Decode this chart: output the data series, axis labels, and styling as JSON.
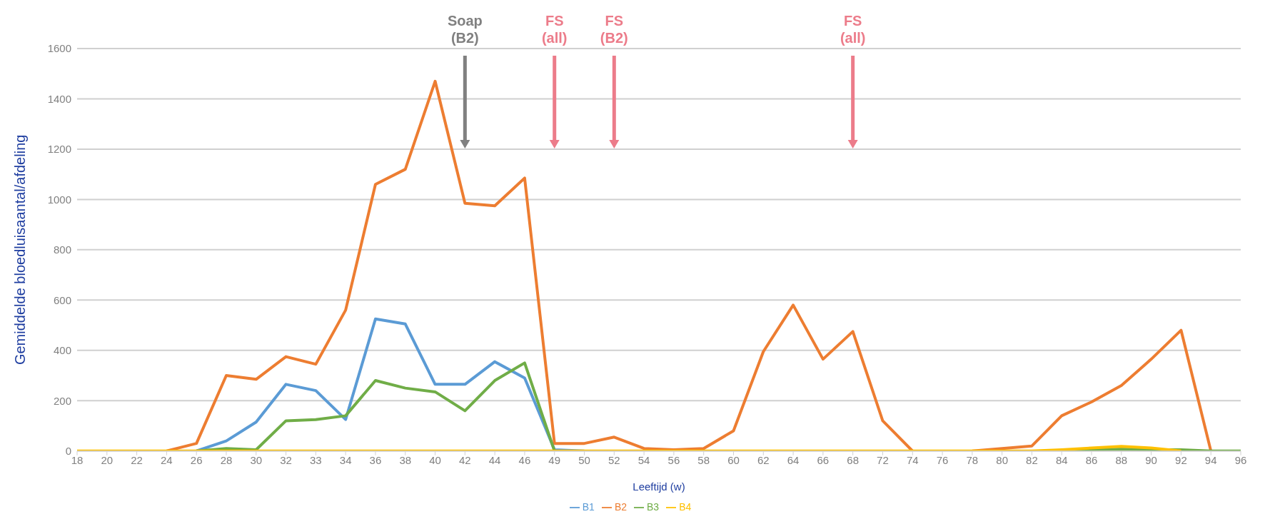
{
  "chart_data": {
    "type": "line",
    "xlabel": "Leeftijd (w)",
    "ylabel": "Gemiddelde bloedluisaantal/afdeling",
    "categories": [
      "18",
      "20",
      "22",
      "24",
      "26",
      "28",
      "30",
      "32",
      "33",
      "34",
      "36",
      "38",
      "40",
      "42",
      "44",
      "46",
      "49",
      "50",
      "52",
      "54",
      "56",
      "58",
      "60",
      "62",
      "64",
      "66",
      "68",
      "72",
      "74",
      "76",
      "78",
      "80",
      "82",
      "84",
      "86",
      "88",
      "90",
      "92",
      "94",
      "96"
    ],
    "series": [
      {
        "name": "B1",
        "color": "#5b9bd5",
        "values": [
          null,
          null,
          null,
          null,
          0,
          40,
          115,
          265,
          240,
          125,
          525,
          505,
          265,
          265,
          355,
          290,
          5,
          0,
          null,
          null,
          null,
          null,
          null,
          null,
          null,
          null,
          null,
          null,
          null,
          null,
          null,
          null,
          null,
          null,
          null,
          null,
          null,
          null,
          null,
          null
        ]
      },
      {
        "name": "B2",
        "color": "#ed7d31",
        "values": [
          null,
          null,
          null,
          0,
          30,
          300,
          285,
          375,
          345,
          560,
          1060,
          1120,
          1470,
          985,
          975,
          1085,
          30,
          30,
          55,
          10,
          5,
          10,
          80,
          395,
          580,
          365,
          475,
          120,
          0,
          null,
          0,
          10,
          20,
          140,
          195,
          260,
          365,
          480,
          0,
          null
        ]
      },
      {
        "name": "B3",
        "color": "#70ad47",
        "values": [
          null,
          null,
          null,
          null,
          0,
          10,
          5,
          120,
          125,
          140,
          280,
          250,
          235,
          160,
          280,
          350,
          0,
          null,
          null,
          null,
          null,
          null,
          null,
          null,
          null,
          null,
          null,
          null,
          null,
          null,
          null,
          null,
          null,
          0,
          5,
          8,
          5,
          5,
          0,
          0
        ]
      },
      {
        "name": "B4",
        "color": "#ffc000",
        "values": [
          0,
          0,
          0,
          0,
          0,
          0,
          0,
          0,
          0,
          0,
          0,
          0,
          0,
          0,
          0,
          0,
          0,
          0,
          0,
          0,
          0,
          0,
          0,
          0,
          0,
          0,
          0,
          0,
          0,
          0,
          0,
          0,
          0,
          5,
          12,
          18,
          12,
          0,
          null,
          null
        ]
      }
    ],
    "ylim": [
      0,
      1600
    ],
    "yticks": [
      0,
      200,
      400,
      600,
      800,
      1000,
      1200,
      1400,
      1600
    ],
    "grid": "y",
    "legend": "bottom",
    "marker": "none",
    "line_style": "solid",
    "ref_lines": [
      {
        "axis": "x",
        "value": "42",
        "label": "Soap (B2)",
        "color": "#808080"
      },
      {
        "axis": "x",
        "value": "49",
        "label": "FS (all)",
        "color": "#ec7c8a"
      },
      {
        "axis": "x",
        "value": "52",
        "label": "FS (B2)",
        "color": "#ec7c8a"
      },
      {
        "axis": "x",
        "value": "68",
        "label": "FS (all)",
        "color": "#ec7c8a"
      }
    ]
  }
}
